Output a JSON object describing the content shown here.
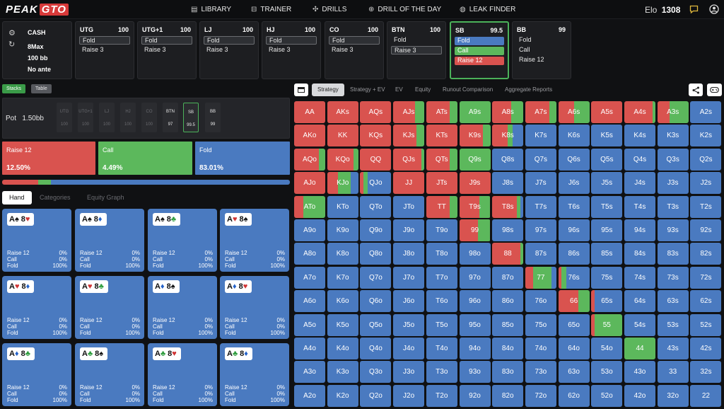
{
  "nav": {
    "logo_a": "PEAK",
    "logo_b": "GTO",
    "items": [
      {
        "label": "LIBRARY",
        "icon": "library-icon",
        "glyph": "▤"
      },
      {
        "label": "TRAINER",
        "icon": "trainer-icon",
        "glyph": "⊟"
      },
      {
        "label": "DRILLS",
        "icon": "drills-icon",
        "glyph": "✣"
      },
      {
        "label": "DRILL OF THE DAY",
        "icon": "drill-of-the-day-icon",
        "glyph": "⊕"
      },
      {
        "label": "LEAK FINDER",
        "icon": "leak-finder-icon",
        "glyph": "◍"
      }
    ],
    "elo_label": "Elo",
    "elo_value": "1308"
  },
  "game": {
    "type": "CASH",
    "format": "8Max",
    "stack": "100 bb",
    "ante": "No ante"
  },
  "positions": [
    {
      "name": "UTG",
      "stack": "100",
      "actions": [
        {
          "label": "Fold",
          "style": "sel"
        },
        {
          "label": "Raise 3",
          "style": "plain"
        }
      ]
    },
    {
      "name": "UTG+1",
      "stack": "100",
      "actions": [
        {
          "label": "Fold",
          "style": "sel"
        },
        {
          "label": "Raise 3",
          "style": "plain"
        }
      ]
    },
    {
      "name": "LJ",
      "stack": "100",
      "actions": [
        {
          "label": "Fold",
          "style": "sel"
        },
        {
          "label": "Raise 3",
          "style": "plain"
        }
      ]
    },
    {
      "name": "HJ",
      "stack": "100",
      "actions": [
        {
          "label": "Fold",
          "style": "sel"
        },
        {
          "label": "Raise 3",
          "style": "plain"
        }
      ]
    },
    {
      "name": "CO",
      "stack": "100",
      "actions": [
        {
          "label": "Fold",
          "style": "sel"
        },
        {
          "label": "Raise 3",
          "style": "plain"
        }
      ]
    },
    {
      "name": "BTN",
      "stack": "100",
      "actions": [
        {
          "label": "Fold",
          "style": "plain"
        },
        {
          "label": "Raise 3",
          "style": "sel"
        }
      ]
    },
    {
      "name": "SB",
      "stack": "99.5",
      "active": true,
      "actions": [
        {
          "label": "Fold",
          "style": "fold"
        },
        {
          "label": "Call",
          "style": "call"
        },
        {
          "label": "Raise 12",
          "style": "raise"
        }
      ]
    },
    {
      "name": "BB",
      "stack": "99",
      "actions": [
        {
          "label": "Fold",
          "style": "plain"
        },
        {
          "label": "Call",
          "style": "plain"
        },
        {
          "label": "Raise 12",
          "style": "plain"
        }
      ]
    }
  ],
  "left_tabs": {
    "stacks": "Stacks",
    "table": "Table"
  },
  "pot": {
    "label": "Pot",
    "value": "1.50bb"
  },
  "stacks": [
    {
      "p": "UTG",
      "v": "100"
    },
    {
      "p": "UTG+1",
      "v": "100"
    },
    {
      "p": "LJ",
      "v": "100"
    },
    {
      "p": "HJ",
      "v": "100"
    },
    {
      "p": "CO",
      "v": "100"
    },
    {
      "p": "BTN",
      "v": "97"
    },
    {
      "p": "SB",
      "v": "99.5"
    },
    {
      "p": "BB",
      "v": "99"
    }
  ],
  "summary": [
    {
      "label": "Raise 12",
      "pct": "12.50%",
      "color": "#d9534f"
    },
    {
      "label": "Call",
      "pct": "4.49%",
      "color": "#5cb85c"
    },
    {
      "label": "Fold",
      "pct": "83.01%",
      "color": "#4a7ac0"
    }
  ],
  "freq_bar": {
    "raise": 0.125,
    "call": 0.0449,
    "fold": 0.8301
  },
  "hand_tabs": [
    "Hand",
    "Categories",
    "Equity Graph"
  ],
  "hand_cards": [
    {
      "c": [
        [
          "A",
          "♠"
        ],
        [
          "8",
          "♥"
        ]
      ],
      "rows": [
        [
          "Raise 12",
          "0%"
        ],
        [
          "Call",
          "0%"
        ],
        [
          "Fold",
          "100%"
        ]
      ]
    },
    {
      "c": [
        [
          "A",
          "♠"
        ],
        [
          "8",
          "♦"
        ]
      ],
      "rows": [
        [
          "Raise 12",
          "0%"
        ],
        [
          "Call",
          "0%"
        ],
        [
          "Fold",
          "100%"
        ]
      ]
    },
    {
      "c": [
        [
          "A",
          "♠"
        ],
        [
          "8",
          "♣"
        ]
      ],
      "rows": [
        [
          "Raise 12",
          "0%"
        ],
        [
          "Call",
          "0%"
        ],
        [
          "Fold",
          "100%"
        ]
      ]
    },
    {
      "c": [
        [
          "A",
          "♥"
        ],
        [
          "8",
          "♠"
        ]
      ],
      "rows": [
        [
          "Raise 12",
          "0%"
        ],
        [
          "Call",
          "0%"
        ],
        [
          "Fold",
          "100%"
        ]
      ]
    },
    {
      "c": [
        [
          "A",
          "♥"
        ],
        [
          "8",
          "♦"
        ]
      ],
      "rows": [
        [
          "Raise 12",
          "0%"
        ],
        [
          "Call",
          "0%"
        ],
        [
          "Fold",
          "100%"
        ]
      ]
    },
    {
      "c": [
        [
          "A",
          "♥"
        ],
        [
          "8",
          "♣"
        ]
      ],
      "rows": [
        [
          "Raise 12",
          "0%"
        ],
        [
          "Call",
          "0%"
        ],
        [
          "Fold",
          "100%"
        ]
      ]
    },
    {
      "c": [
        [
          "A",
          "♦"
        ],
        [
          "8",
          "♠"
        ]
      ],
      "rows": [
        [
          "Raise 12",
          "0%"
        ],
        [
          "Call",
          "0%"
        ],
        [
          "Fold",
          "100%"
        ]
      ]
    },
    {
      "c": [
        [
          "A",
          "♦"
        ],
        [
          "8",
          "♥"
        ]
      ],
      "rows": [
        [
          "Raise 12",
          "0%"
        ],
        [
          "Call",
          "0%"
        ],
        [
          "Fold",
          "100%"
        ]
      ]
    },
    {
      "c": [
        [
          "A",
          "♦"
        ],
        [
          "8",
          "♣"
        ]
      ],
      "rows": [
        [
          "Raise 12",
          "0%"
        ],
        [
          "Call",
          "0%"
        ],
        [
          "Fold",
          "100%"
        ]
      ]
    },
    {
      "c": [
        [
          "A",
          "♣"
        ],
        [
          "8",
          "♠"
        ]
      ],
      "rows": [
        [
          "Raise 12",
          "0%"
        ],
        [
          "Call",
          "0%"
        ],
        [
          "Fold",
          "100%"
        ]
      ]
    },
    {
      "c": [
        [
          "A",
          "♣"
        ],
        [
          "8",
          "♥"
        ]
      ],
      "rows": [
        [
          "Raise 12",
          "0%"
        ],
        [
          "Call",
          "0%"
        ],
        [
          "Fold",
          "100%"
        ]
      ]
    },
    {
      "c": [
        [
          "A",
          "♣"
        ],
        [
          "8",
          "♦"
        ]
      ],
      "rows": [
        [
          "Raise 12",
          "0%"
        ],
        [
          "Call",
          "0%"
        ],
        [
          "Fold",
          "100%"
        ]
      ]
    }
  ],
  "right_tabs": [
    "Strategy",
    "Strategy + EV",
    "EV",
    "Equity",
    "Runout Comparison",
    "Aggregate Reports"
  ],
  "colors": {
    "raise": "#d9534f",
    "call": "#5cb85c",
    "fold": "#4a7ac0"
  },
  "grid": [
    [
      [
        "AA",
        1,
        0
      ],
      [
        "AKs",
        1,
        0
      ],
      [
        "AQs",
        1,
        0
      ],
      [
        "AJs",
        0.7,
        0.3
      ],
      [
        "ATs",
        0.75,
        0.25
      ],
      [
        "A9s",
        0,
        1
      ],
      [
        "A8s",
        0.6,
        0.4
      ],
      [
        "A7s",
        0.78,
        0.22
      ],
      [
        "A6s",
        0.5,
        0.5
      ],
      [
        "A5s",
        1,
        0
      ],
      [
        "A4s",
        0.9,
        0.1
      ],
      [
        "A3s",
        0.4,
        0.6
      ],
      [
        "A2s",
        0,
        0
      ]
    ],
    [
      [
        "AKo",
        1,
        0
      ],
      [
        "KK",
        1,
        0
      ],
      [
        "KQs",
        1,
        0
      ],
      [
        "KJs",
        0.75,
        0.25
      ],
      [
        "KTs",
        1,
        0
      ],
      [
        "K9s",
        0.75,
        0.25
      ],
      [
        "K8s",
        0.5,
        0.15
      ],
      [
        "K7s",
        0,
        0
      ],
      [
        "K6s",
        0,
        0
      ],
      [
        "K5s",
        0,
        0
      ],
      [
        "K4s",
        0,
        0
      ],
      [
        "K3s",
        0,
        0
      ],
      [
        "K2s",
        0,
        0
      ]
    ],
    [
      [
        "AQo",
        0.8,
        0.2
      ],
      [
        "KQo",
        0.85,
        0.15
      ],
      [
        "QQ",
        1,
        0
      ],
      [
        "QJs",
        0.9,
        0.1
      ],
      [
        "QTs",
        0.75,
        0.25
      ],
      [
        "Q9s",
        0,
        1
      ],
      [
        "Q8s",
        0,
        0
      ],
      [
        "Q7s",
        0,
        0
      ],
      [
        "Q6s",
        0,
        0
      ],
      [
        "Q5s",
        0,
        0
      ],
      [
        "Q4s",
        0,
        0
      ],
      [
        "Q3s",
        0,
        0
      ],
      [
        "Q2s",
        0,
        0
      ]
    ],
    [
      [
        "AJo",
        1,
        0
      ],
      [
        "KJo",
        0.35,
        0.4
      ],
      [
        "QJo",
        0.1,
        0.15
      ],
      [
        "JJ",
        1,
        0
      ],
      [
        "JTs",
        1,
        0
      ],
      [
        "J9s",
        1,
        0
      ],
      [
        "J8s",
        0,
        0
      ],
      [
        "J7s",
        0,
        0
      ],
      [
        "J6s",
        0,
        0
      ],
      [
        "J5s",
        0,
        0
      ],
      [
        "J4s",
        0,
        0
      ],
      [
        "J3s",
        0,
        0
      ],
      [
        "J2s",
        0,
        0
      ]
    ],
    [
      [
        "ATo",
        0.3,
        0.7
      ],
      [
        "KTo",
        0,
        0
      ],
      [
        "QTo",
        0,
        0
      ],
      [
        "JTo",
        0,
        0
      ],
      [
        "TT",
        0.75,
        0.25
      ],
      [
        "T9s",
        0.65,
        0.35
      ],
      [
        "T8s",
        0.8,
        0.1
      ],
      [
        "T7s",
        0,
        0
      ],
      [
        "T6s",
        0,
        0
      ],
      [
        "T5s",
        0,
        0
      ],
      [
        "T4s",
        0,
        0
      ],
      [
        "T3s",
        0,
        0
      ],
      [
        "T2s",
        0,
        0
      ]
    ],
    [
      [
        "A9o",
        0,
        0
      ],
      [
        "K9o",
        0,
        0
      ],
      [
        "Q9o",
        0,
        0
      ],
      [
        "J9o",
        0,
        0
      ],
      [
        "T9o",
        0,
        0
      ],
      [
        "99",
        0.6,
        0.4
      ],
      [
        "98s",
        0,
        0
      ],
      [
        "97s",
        0,
        0
      ],
      [
        "96s",
        0,
        0
      ],
      [
        "95s",
        0,
        0
      ],
      [
        "94s",
        0,
        0
      ],
      [
        "93s",
        0,
        0
      ],
      [
        "92s",
        0,
        0
      ]
    ],
    [
      [
        "A8o",
        0,
        0
      ],
      [
        "K8o",
        0,
        0
      ],
      [
        "Q8o",
        0,
        0
      ],
      [
        "J8o",
        0,
        0
      ],
      [
        "T8o",
        0,
        0
      ],
      [
        "98o",
        0,
        0
      ],
      [
        "88",
        0.9,
        0.1
      ],
      [
        "87s",
        0,
        0
      ],
      [
        "86s",
        0,
        0
      ],
      [
        "85s",
        0,
        0
      ],
      [
        "84s",
        0,
        0
      ],
      [
        "83s",
        0,
        0
      ],
      [
        "82s",
        0,
        0
      ]
    ],
    [
      [
        "A7o",
        0,
        0
      ],
      [
        "K7o",
        0,
        0
      ],
      [
        "Q7o",
        0,
        0
      ],
      [
        "J7o",
        0,
        0
      ],
      [
        "T7o",
        0,
        0
      ],
      [
        "97o",
        0,
        0
      ],
      [
        "87o",
        0,
        0
      ],
      [
        "77",
        0.25,
        0.6
      ],
      [
        "76s",
        0.1,
        0.15
      ],
      [
        "75s",
        0,
        0
      ],
      [
        "74s",
        0,
        0
      ],
      [
        "73s",
        0,
        0
      ],
      [
        "72s",
        0,
        0
      ]
    ],
    [
      [
        "A6o",
        0,
        0
      ],
      [
        "K6o",
        0,
        0
      ],
      [
        "Q6o",
        0,
        0
      ],
      [
        "J6o",
        0,
        0
      ],
      [
        "T6o",
        0,
        0
      ],
      [
        "96o",
        0,
        0
      ],
      [
        "86o",
        0,
        0
      ],
      [
        "76o",
        0,
        0
      ],
      [
        "66",
        0.65,
        0.35
      ],
      [
        "65s",
        0.1,
        0
      ],
      [
        "64s",
        0,
        0
      ],
      [
        "63s",
        0,
        0
      ],
      [
        "62s",
        0,
        0
      ]
    ],
    [
      [
        "A5o",
        0,
        0
      ],
      [
        "K5o",
        0,
        0
      ],
      [
        "Q5o",
        0,
        0
      ],
      [
        "J5o",
        0,
        0
      ],
      [
        "T5o",
        0,
        0
      ],
      [
        "95o",
        0,
        0
      ],
      [
        "85o",
        0,
        0
      ],
      [
        "75o",
        0,
        0
      ],
      [
        "65o",
        0,
        0
      ],
      [
        "55",
        0.1,
        0.9
      ],
      [
        "54s",
        0,
        0
      ],
      [
        "53s",
        0,
        0
      ],
      [
        "52s",
        0,
        0
      ]
    ],
    [
      [
        "A4o",
        0,
        0
      ],
      [
        "K4o",
        0,
        0
      ],
      [
        "Q4o",
        0,
        0
      ],
      [
        "J4o",
        0,
        0
      ],
      [
        "T4o",
        0,
        0
      ],
      [
        "94o",
        0,
        0
      ],
      [
        "84o",
        0,
        0
      ],
      [
        "74o",
        0,
        0
      ],
      [
        "64o",
        0,
        0
      ],
      [
        "54o",
        0,
        0
      ],
      [
        "44",
        0,
        1
      ],
      [
        "43s",
        0,
        0
      ],
      [
        "42s",
        0,
        0
      ]
    ],
    [
      [
        "A3o",
        0,
        0
      ],
      [
        "K3o",
        0,
        0
      ],
      [
        "Q3o",
        0,
        0
      ],
      [
        "J3o",
        0,
        0
      ],
      [
        "T3o",
        0,
        0
      ],
      [
        "93o",
        0,
        0
      ],
      [
        "83o",
        0,
        0
      ],
      [
        "73o",
        0,
        0
      ],
      [
        "63o",
        0,
        0
      ],
      [
        "53o",
        0,
        0
      ],
      [
        "43o",
        0,
        0
      ],
      [
        "33",
        0,
        0
      ],
      [
        "32s",
        0,
        0
      ]
    ],
    [
      [
        "A2o",
        0,
        0
      ],
      [
        "K2o",
        0,
        0
      ],
      [
        "Q2o",
        0,
        0
      ],
      [
        "J2o",
        0,
        0
      ],
      [
        "T2o",
        0,
        0
      ],
      [
        "92o",
        0,
        0
      ],
      [
        "82o",
        0,
        0
      ],
      [
        "72o",
        0,
        0
      ],
      [
        "62o",
        0,
        0
      ],
      [
        "52o",
        0,
        0
      ],
      [
        "42o",
        0,
        0
      ],
      [
        "32o",
        0,
        0
      ],
      [
        "22",
        0,
        0
      ]
    ]
  ]
}
